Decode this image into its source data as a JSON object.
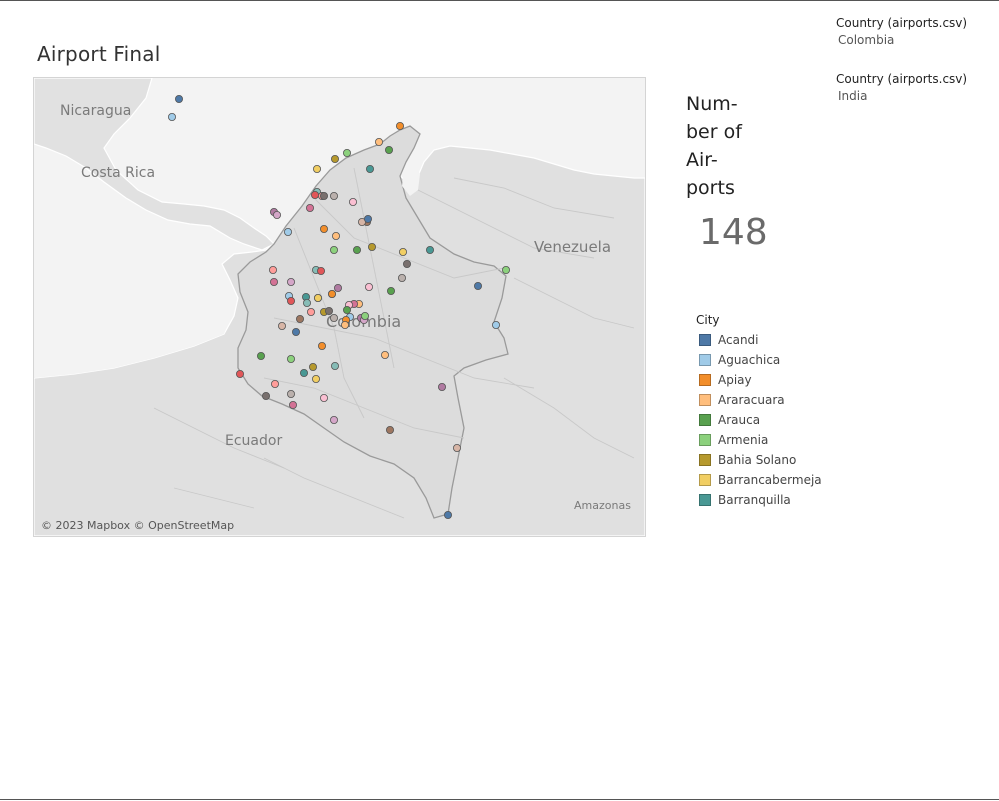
{
  "dashboard": {
    "title": "Airport Final"
  },
  "map": {
    "attribution": "© 2023 Mapbox © OpenStreetMap",
    "labels": {
      "nicaragua": "Nicaragua",
      "costa_rica": "Costa Rica",
      "venezuela": "Venezuela",
      "colombia": "Colombia",
      "ecuador": "Ecuador",
      "amazonas": "Amazonas"
    },
    "land_color": "#e0e0e0",
    "water_color": "#f4f4f4",
    "border_color": "#ffffff",
    "point_colors": [
      "#4e79a7",
      "#a0cbe8",
      "#f28e2b",
      "#ffbe7d",
      "#59a14f",
      "#8cd17d",
      "#b6992d",
      "#f1ce63",
      "#499894",
      "#86bcb6",
      "#e15759",
      "#ff9d9a",
      "#79706e",
      "#bab0ac",
      "#d37295",
      "#fabfd2",
      "#b07aa1",
      "#d4a6c8",
      "#9d7660",
      "#d7b5a6"
    ]
  },
  "kpi": {
    "title": "Num-\nber of\nAir-\nports",
    "value": "148"
  },
  "legend": {
    "title": "City",
    "items": [
      {
        "label": "Acandi",
        "color": "#4e79a7"
      },
      {
        "label": "Aguachica",
        "color": "#a0cbe8"
      },
      {
        "label": "Apiay",
        "color": "#f28e2b"
      },
      {
        "label": "Araracuara",
        "color": "#ffbe7d"
      },
      {
        "label": "Arauca",
        "color": "#59a14f"
      },
      {
        "label": "Armenia",
        "color": "#8cd17d"
      },
      {
        "label": "Bahia Solano",
        "color": "#b6992d"
      },
      {
        "label": "Barrancabermeja",
        "color": "#f1ce63"
      },
      {
        "label": "Barranquilla",
        "color": "#499894"
      }
    ]
  },
  "filters": [
    {
      "title": "Country (airports.csv)",
      "value": "Colombia"
    },
    {
      "title": "Country (airports.csv)",
      "value": "India"
    }
  ]
}
